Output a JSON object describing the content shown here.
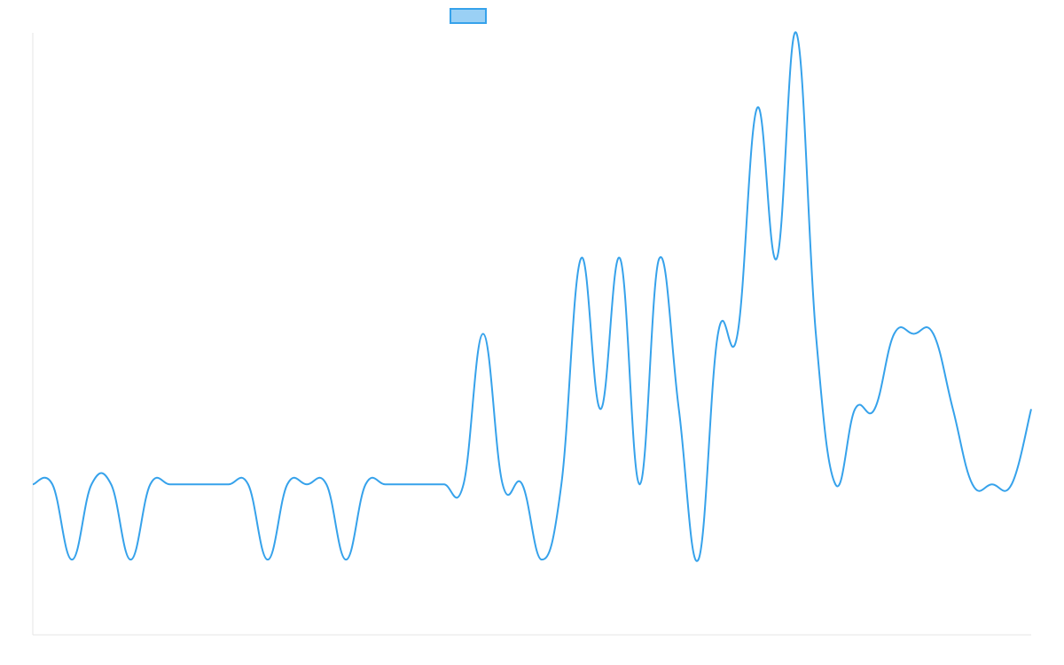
{
  "chart_data": {
    "type": "line",
    "title": "",
    "xlabel": "",
    "ylabel": "",
    "grid": false,
    "legend": "top-center",
    "x": [
      0,
      1,
      2,
      3,
      4,
      5,
      6,
      7,
      8,
      9,
      10,
      11,
      12,
      13,
      14,
      15,
      16,
      17,
      18,
      19,
      20,
      21,
      22,
      23,
      24,
      25,
      26,
      27,
      28,
      29,
      30,
      31,
      32,
      33,
      34,
      35,
      36,
      37,
      38,
      39,
      40,
      41,
      42,
      43,
      44,
      45,
      46,
      47,
      48,
      49,
      50,
      51
    ],
    "ylim": [
      -2,
      6
    ],
    "series": [
      {
        "name": "",
        "color": "#36a2eb",
        "fill": "#9ad0f5",
        "values": [
          0,
          0,
          -1,
          0,
          0,
          -1,
          0,
          0,
          0,
          0,
          0,
          0,
          -1,
          0,
          0,
          0,
          -1,
          0,
          0,
          0,
          0,
          0,
          0,
          2,
          0,
          0,
          -1,
          0,
          3,
          1,
          3,
          0,
          3,
          1,
          -1,
          2,
          2,
          5,
          3,
          6,
          2,
          0,
          1,
          1,
          2,
          2,
          2,
          1,
          0,
          0,
          0,
          1
        ]
      }
    ]
  },
  "colors": {
    "line": "#36a2eb",
    "legend_fill": "#9ad0f5",
    "axis": "#e6e6e6"
  }
}
